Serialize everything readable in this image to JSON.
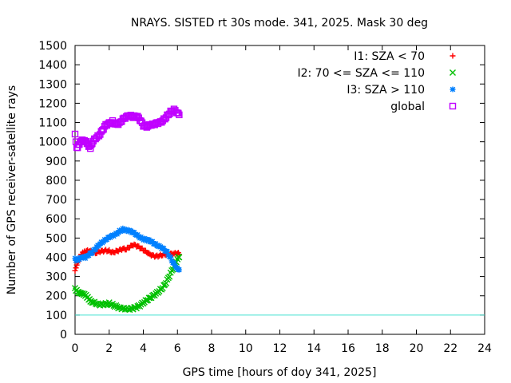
{
  "chart_data": {
    "type": "scatter",
    "title": "NRAYS. SISTED rt 30s mode. 341, 2025. Mask 30 deg",
    "xlabel": "GPS time [hours of doy 341, 2025]",
    "ylabel": "Number of GPS receiver-satellite rays",
    "xlim": [
      0,
      24
    ],
    "ylim": [
      0,
      1500
    ],
    "xticks": [
      0,
      2,
      4,
      6,
      8,
      10,
      12,
      14,
      16,
      18,
      20,
      22,
      24
    ],
    "yticks": [
      0,
      100,
      200,
      300,
      400,
      500,
      600,
      700,
      800,
      900,
      1000,
      1100,
      1200,
      1300,
      1400,
      1500
    ],
    "grid": false,
    "legend_position": "top-right",
    "reference_line": {
      "y": 100,
      "color": "#40e0d0"
    },
    "series": [
      {
        "name": "I1: SZA < 70",
        "marker": "+",
        "color": "#ff0000",
        "x": [
          0.0,
          0.05,
          0.1,
          0.2,
          0.3,
          0.4,
          0.5,
          0.6,
          0.8,
          1.0,
          1.2,
          1.4,
          1.6,
          1.8,
          2.0,
          2.2,
          2.4,
          2.6,
          2.8,
          3.0,
          3.2,
          3.4,
          3.6,
          3.8,
          4.0,
          4.2,
          4.4,
          4.6,
          4.8,
          5.0,
          5.2,
          5.4,
          5.6,
          5.8,
          6.0,
          6.1
        ],
        "y": [
          330,
          345,
          360,
          380,
          400,
          415,
          420,
          425,
          430,
          425,
          420,
          430,
          435,
          440,
          438,
          430,
          435,
          440,
          445,
          440,
          450,
          460,
          455,
          445,
          435,
          425,
          415,
          410,
          410,
          415,
          420,
          420,
          420,
          420,
          420,
          415
        ]
      },
      {
        "name": "I2: 70 <= SZA <= 110",
        "marker": "x",
        "color": "#00c000",
        "x": [
          0.0,
          0.1,
          0.2,
          0.3,
          0.4,
          0.5,
          0.6,
          0.7,
          0.8,
          0.9,
          1.0,
          1.2,
          1.4,
          1.6,
          1.8,
          2.0,
          2.2,
          2.4,
          2.6,
          2.8,
          3.0,
          3.2,
          3.4,
          3.6,
          3.8,
          4.0,
          4.2,
          4.4,
          4.6,
          4.8,
          5.0,
          5.2,
          5.4,
          5.6,
          5.8,
          6.0,
          6.1
        ],
        "y": [
          240,
          230,
          220,
          215,
          210,
          205,
          200,
          190,
          180,
          170,
          165,
          160,
          155,
          158,
          162,
          165,
          158,
          150,
          140,
          135,
          130,
          128,
          130,
          135,
          145,
          160,
          175,
          190,
          205,
          220,
          235,
          255,
          285,
          320,
          355,
          390,
          400
        ]
      },
      {
        "name": "I3: SZA > 110",
        "marker": "*",
        "color": "#0080ff",
        "x": [
          0.0,
          0.1,
          0.2,
          0.3,
          0.4,
          0.5,
          0.6,
          0.8,
          1.0,
          1.2,
          1.4,
          1.6,
          1.8,
          2.0,
          2.2,
          2.4,
          2.6,
          2.8,
          3.0,
          3.2,
          3.4,
          3.6,
          3.8,
          4.0,
          4.2,
          4.4,
          4.6,
          4.8,
          5.0,
          5.2,
          5.4,
          5.6,
          5.8,
          6.0,
          6.1
        ],
        "y": [
          395,
          390,
          392,
          398,
          400,
          402,
          395,
          410,
          420,
          440,
          460,
          475,
          490,
          505,
          515,
          525,
          540,
          550,
          545,
          540,
          530,
          515,
          500,
          490,
          485,
          480,
          470,
          460,
          455,
          445,
          430,
          400,
          370,
          345,
          335
        ]
      },
      {
        "name": "global",
        "marker": "square",
        "color": "#c000ff",
        "x": [
          0.0,
          0.05,
          0.1,
          0.2,
          0.3,
          0.4,
          0.5,
          0.6,
          0.7,
          0.8,
          0.9,
          1.0,
          1.2,
          1.4,
          1.6,
          1.8,
          2.0,
          2.2,
          2.4,
          2.6,
          2.8,
          3.0,
          3.2,
          3.4,
          3.6,
          3.8,
          4.0,
          4.2,
          4.4,
          4.6,
          4.8,
          5.0,
          5.2,
          5.4,
          5.6,
          5.8,
          6.0,
          6.1
        ],
        "y": [
          1040,
          1000,
          970,
          985,
          1000,
          1010,
          1005,
          1000,
          990,
          975,
          965,
          990,
          1015,
          1030,
          1060,
          1090,
          1100,
          1110,
          1095,
          1100,
          1120,
          1130,
          1135,
          1125,
          1130,
          1110,
          1080,
          1075,
          1085,
          1090,
          1100,
          1105,
          1120,
          1140,
          1160,
          1170,
          1150,
          1140
        ]
      }
    ]
  }
}
